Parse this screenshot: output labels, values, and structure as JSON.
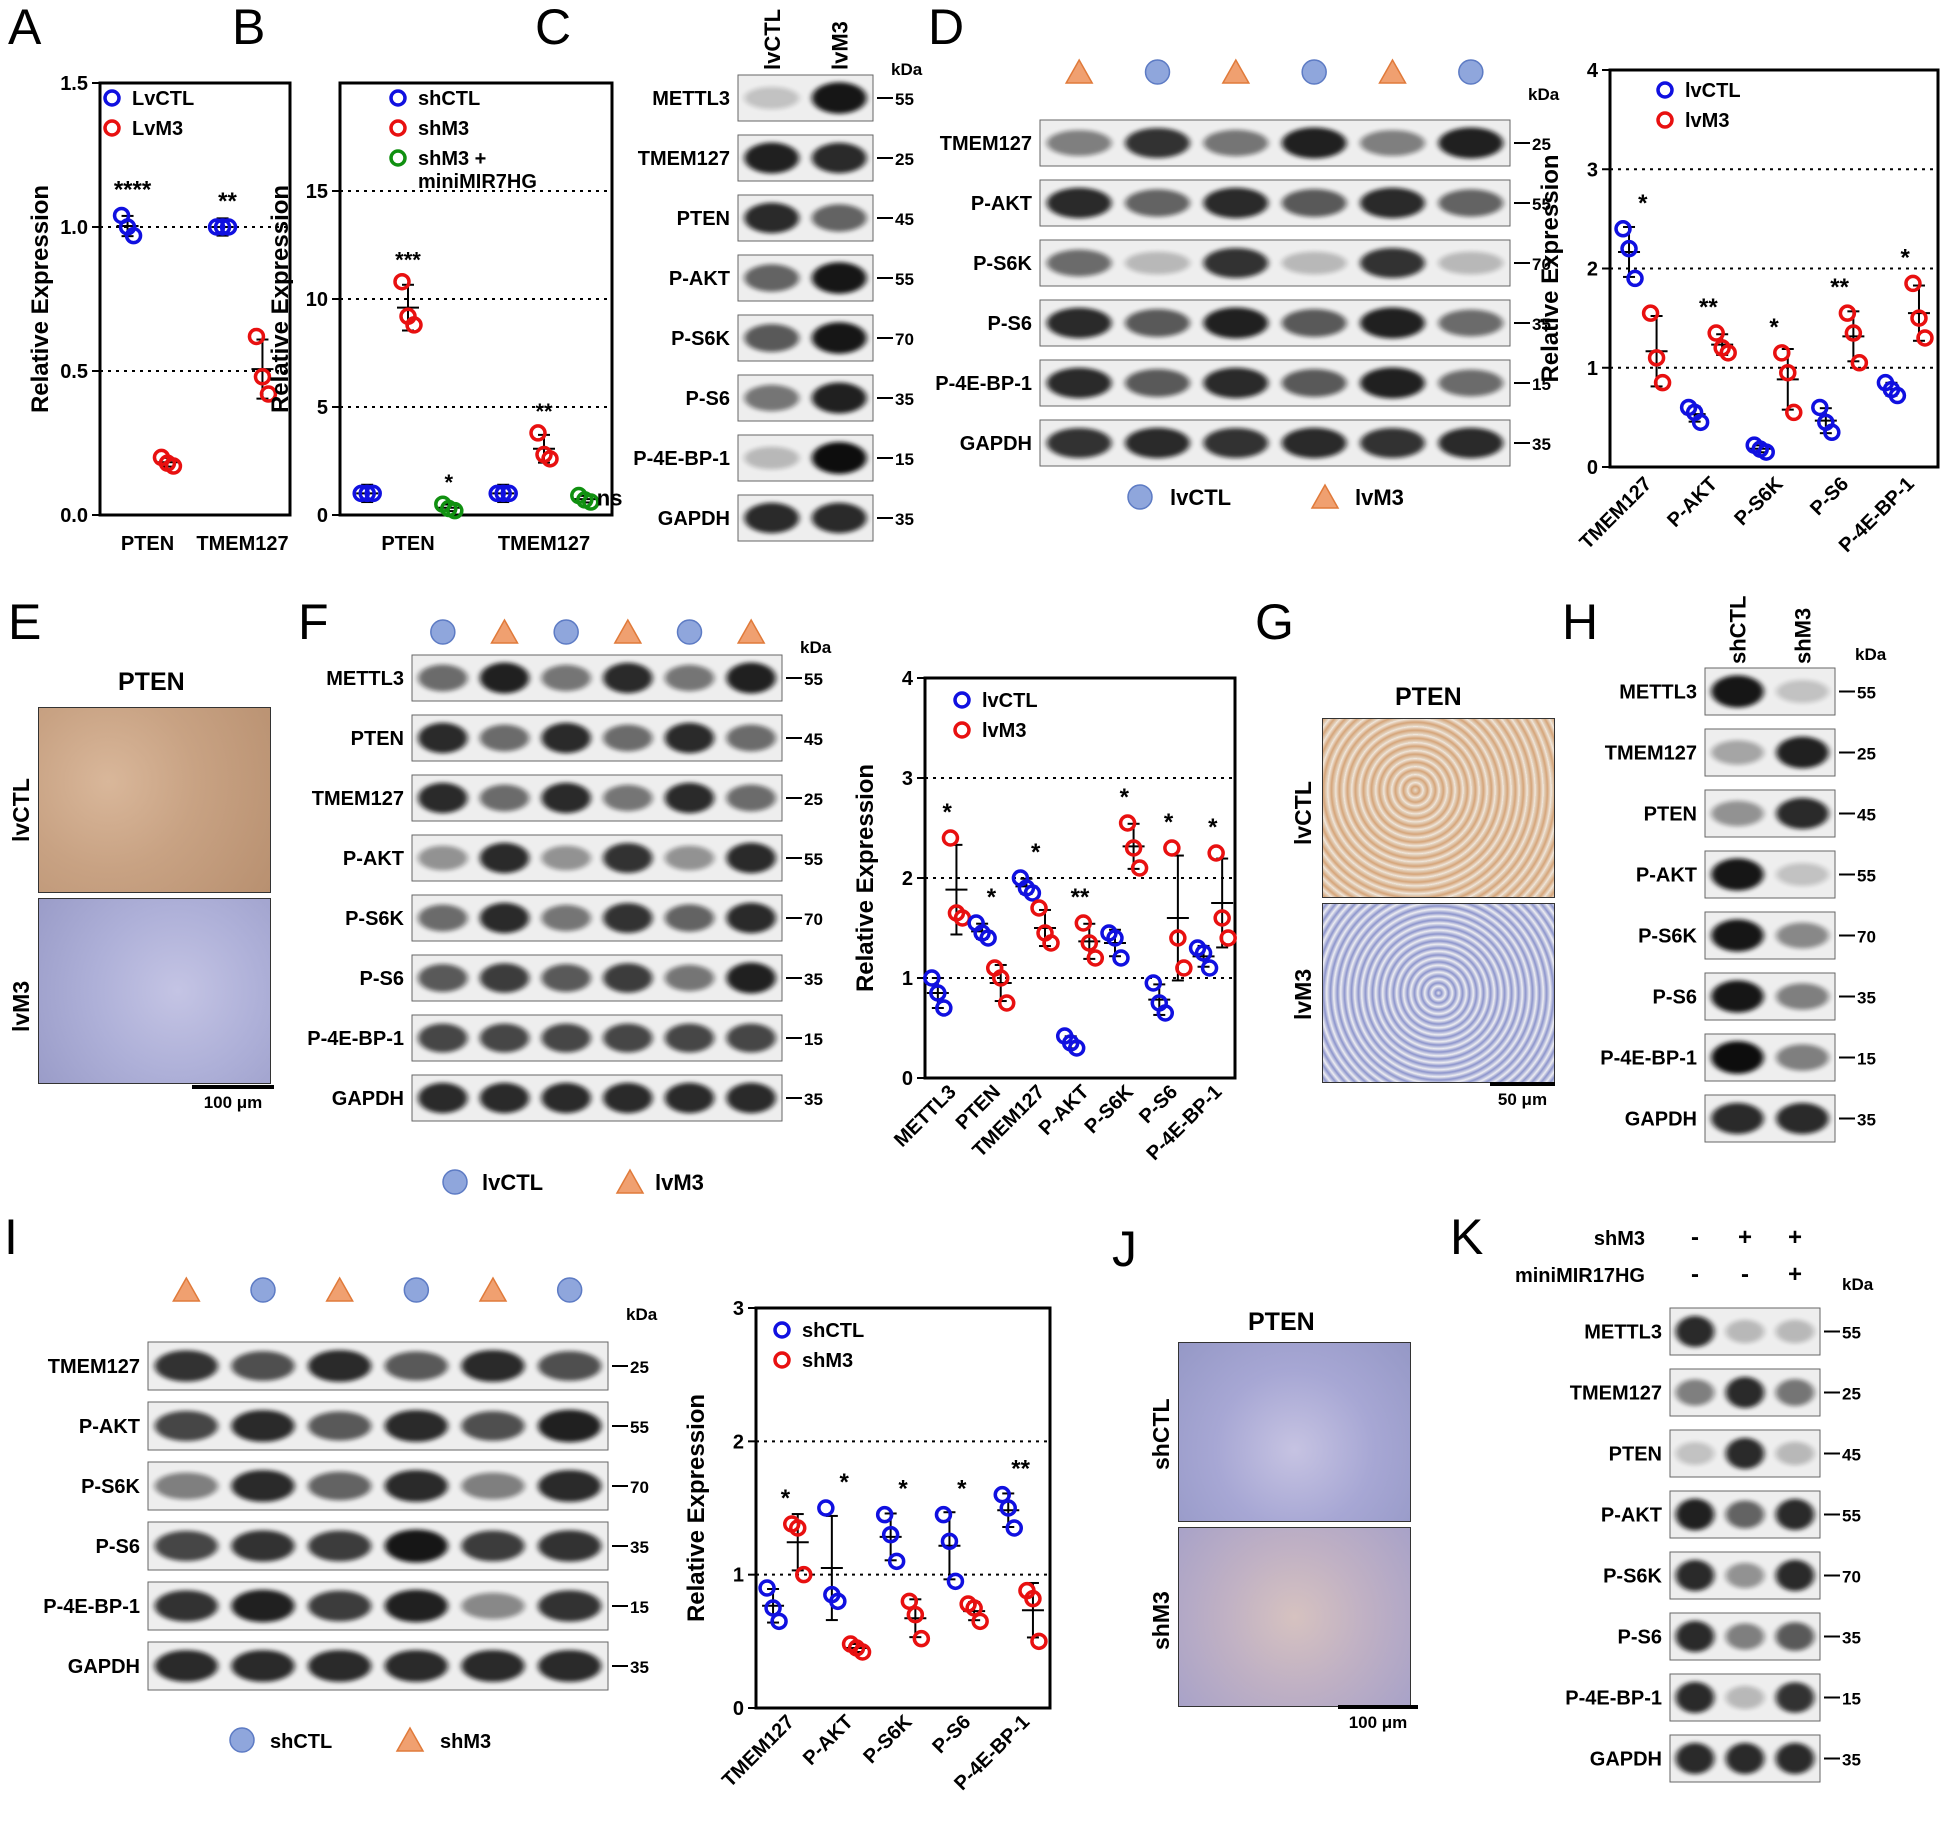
{
  "panel_letters": [
    "A",
    "B",
    "C",
    "D",
    "E",
    "F",
    "G",
    "H",
    "I",
    "J",
    "K"
  ],
  "kda": "kDa",
  "blot_C": {
    "lanes": [
      "lvCTL",
      "lvM3"
    ],
    "rows": [
      {
        "label": "METTL3",
        "mw": "55",
        "i": [
          0.05,
          0.95
        ]
      },
      {
        "label": "TMEM127",
        "mw": "25",
        "i": [
          0.9,
          0.85
        ]
      },
      {
        "label": "PTEN",
        "mw": "45",
        "i": [
          0.85,
          0.55
        ]
      },
      {
        "label": "P-AKT",
        "mw": "55",
        "i": [
          0.55,
          0.95
        ]
      },
      {
        "label": "P-S6K",
        "mw": "70",
        "i": [
          0.6,
          0.95
        ]
      },
      {
        "label": "P-S6",
        "mw": "35",
        "i": [
          0.45,
          0.9
        ]
      },
      {
        "label": "P-4E-BP-1",
        "mw": "15",
        "i": [
          0.1,
          1.0
        ]
      },
      {
        "label": "GAPDH",
        "mw": "35",
        "i": [
          0.85,
          0.85
        ]
      }
    ]
  },
  "blot_D": {
    "lanes": [
      "triangle",
      "circle",
      "triangle",
      "circle",
      "triangle",
      "circle"
    ],
    "rows": [
      {
        "label": "TMEM127",
        "mw": "25",
        "i": [
          0.4,
          0.8,
          0.45,
          0.9,
          0.4,
          0.9
        ]
      },
      {
        "label": "P-AKT",
        "mw": "55",
        "i": [
          0.85,
          0.55,
          0.85,
          0.6,
          0.85,
          0.55
        ]
      },
      {
        "label": "P-S6K",
        "mw": "70",
        "i": [
          0.5,
          0.1,
          0.8,
          0.1,
          0.8,
          0.1
        ]
      },
      {
        "label": "P-S6",
        "mw": "35",
        "i": [
          0.85,
          0.6,
          0.9,
          0.6,
          0.9,
          0.5
        ]
      },
      {
        "label": "P-4E-BP-1",
        "mw": "15",
        "i": [
          0.85,
          0.6,
          0.85,
          0.6,
          0.9,
          0.5
        ]
      },
      {
        "label": "GAPDH",
        "mw": "35",
        "i": [
          0.8,
          0.85,
          0.8,
          0.85,
          0.8,
          0.85
        ]
      }
    ],
    "legend": [
      "lvCTL",
      "lvM3"
    ]
  },
  "blot_F": {
    "lanes": [
      "circle",
      "triangle",
      "circle",
      "triangle",
      "circle",
      "triangle"
    ],
    "rows": [
      {
        "label": "METTL3",
        "mw": "55",
        "i": [
          0.5,
          0.9,
          0.45,
          0.85,
          0.45,
          0.9
        ]
      },
      {
        "label": "PTEN",
        "mw": "45",
        "i": [
          0.85,
          0.5,
          0.85,
          0.5,
          0.85,
          0.5
        ]
      },
      {
        "label": "TMEM127",
        "mw": "25",
        "i": [
          0.85,
          0.5,
          0.85,
          0.45,
          0.85,
          0.5
        ]
      },
      {
        "label": "P-AKT",
        "mw": "55",
        "i": [
          0.3,
          0.85,
          0.3,
          0.8,
          0.3,
          0.85
        ]
      },
      {
        "label": "P-S6K",
        "mw": "70",
        "i": [
          0.5,
          0.85,
          0.45,
          0.8,
          0.55,
          0.85
        ]
      },
      {
        "label": "P-S6",
        "mw": "35",
        "i": [
          0.6,
          0.75,
          0.6,
          0.75,
          0.45,
          0.9
        ]
      },
      {
        "label": "P-4E-BP-1",
        "mw": "15",
        "i": [
          0.7,
          0.7,
          0.7,
          0.7,
          0.7,
          0.7
        ]
      },
      {
        "label": "GAPDH",
        "mw": "35",
        "i": [
          0.85,
          0.85,
          0.85,
          0.85,
          0.85,
          0.85
        ]
      }
    ],
    "legend": [
      "lvCTL",
      "lvM3"
    ]
  },
  "blot_H": {
    "lanes": [
      "shCTL",
      "shM3"
    ],
    "rows": [
      {
        "label": "METTL3",
        "mw": "55",
        "i": [
          0.95,
          0.05
        ]
      },
      {
        "label": "TMEM127",
        "mw": "25",
        "i": [
          0.2,
          0.9
        ]
      },
      {
        "label": "PTEN",
        "mw": "45",
        "i": [
          0.3,
          0.85
        ]
      },
      {
        "label": "P-AKT",
        "mw": "55",
        "i": [
          0.95,
          0.05
        ]
      },
      {
        "label": "P-S6K",
        "mw": "70",
        "i": [
          0.95,
          0.35
        ]
      },
      {
        "label": "P-S6",
        "mw": "35",
        "i": [
          0.95,
          0.4
        ]
      },
      {
        "label": "P-4E-BP-1",
        "mw": "15",
        "i": [
          1.0,
          0.4
        ]
      },
      {
        "label": "GAPDH",
        "mw": "35",
        "i": [
          0.85,
          0.85
        ]
      }
    ]
  },
  "blot_I": {
    "lanes": [
      "triangle",
      "circle",
      "triangle",
      "circle",
      "triangle",
      "circle"
    ],
    "rows": [
      {
        "label": "TMEM127",
        "mw": "25",
        "i": [
          0.8,
          0.65,
          0.85,
          0.6,
          0.85,
          0.65
        ]
      },
      {
        "label": "P-AKT",
        "mw": "55",
        "i": [
          0.7,
          0.85,
          0.6,
          0.85,
          0.65,
          0.9
        ]
      },
      {
        "label": "P-S6K",
        "mw": "70",
        "i": [
          0.4,
          0.85,
          0.55,
          0.85,
          0.4,
          0.85
        ]
      },
      {
        "label": "P-S6",
        "mw": "35",
        "i": [
          0.7,
          0.8,
          0.75,
          0.95,
          0.75,
          0.8
        ]
      },
      {
        "label": "P-4E-BP-1",
        "mw": "15",
        "i": [
          0.8,
          0.9,
          0.75,
          0.9,
          0.35,
          0.8
        ]
      },
      {
        "label": "GAPDH",
        "mw": "35",
        "i": [
          0.85,
          0.85,
          0.85,
          0.85,
          0.85,
          0.85
        ]
      }
    ],
    "legend": [
      "shCTL",
      "shM3"
    ]
  },
  "blot_K": {
    "header": [
      {
        "label": "shM3",
        "signs": [
          "-",
          "+",
          "+"
        ]
      },
      {
        "label": "miniMIR17HG",
        "signs": [
          "-",
          "-",
          "+"
        ]
      }
    ],
    "rows": [
      {
        "label": "METTL3",
        "mw": "55",
        "i": [
          0.85,
          0.1,
          0.1
        ]
      },
      {
        "label": "TMEM127",
        "mw": "25",
        "i": [
          0.4,
          0.85,
          0.45
        ]
      },
      {
        "label": "PTEN",
        "mw": "45",
        "i": [
          0.05,
          0.85,
          0.1
        ]
      },
      {
        "label": "P-AKT",
        "mw": "55",
        "i": [
          0.9,
          0.55,
          0.85
        ]
      },
      {
        "label": "P-S6K",
        "mw": "70",
        "i": [
          0.85,
          0.3,
          0.85
        ]
      },
      {
        "label": "P-S6",
        "mw": "35",
        "i": [
          0.85,
          0.4,
          0.6
        ]
      },
      {
        "label": "P-4E-BP-1",
        "mw": "15",
        "i": [
          0.85,
          0.1,
          0.8
        ]
      },
      {
        "label": "GAPDH",
        "mw": "35",
        "i": [
          0.85,
          0.85,
          0.85
        ]
      }
    ]
  },
  "tissue": {
    "E": {
      "title": "PTEN",
      "rows": [
        "lvCTL",
        "lvM3"
      ],
      "scale": "100 μm"
    },
    "G": {
      "title": "PTEN",
      "rows": [
        "lvCTL",
        "lvM3"
      ],
      "scale": "50 μm"
    },
    "J": {
      "title": "PTEN",
      "rows": [
        "shCTL",
        "shM3"
      ],
      "scale": "100 μm"
    }
  },
  "colors": {
    "blue": "#1010e0",
    "red": "#e81010",
    "green": "#109010",
    "circle_fill": "#8fa6dc",
    "triangle_fill": "#f0a070",
    "ihc_brown": "#c8a283",
    "ihc_blue": "#aeb0d8"
  },
  "chart_data": [
    {
      "panel": "A",
      "type": "scatter",
      "ylabel": "Relative Expression",
      "ylim": [
        0,
        1.5
      ],
      "yticks": [
        "0.0",
        "0.5",
        "1.0",
        "1.5"
      ],
      "categories": [
        "PTEN",
        "TMEM127"
      ],
      "reflines": [
        0.5,
        1.0
      ],
      "series": [
        {
          "name": "LvCTL",
          "color": "blue",
          "values": [
            [
              1.04,
              1.0,
              0.97
            ],
            [
              1.0,
              1.0,
              1.0
            ]
          ]
        },
        {
          "name": "LvM3",
          "color": "red",
          "values": [
            [
              0.2,
              0.18,
              0.17
            ],
            [
              0.62,
              0.48,
              0.42
            ]
          ]
        }
      ],
      "sig": [
        "****",
        "**"
      ]
    },
    {
      "panel": "B",
      "type": "scatter",
      "ylabel": "Relative Expression",
      "ylim": [
        0,
        20
      ],
      "yticks": [
        "0",
        "5",
        "10",
        "15"
      ],
      "categories": [
        "PTEN",
        "TMEM127"
      ],
      "reflines": [
        5,
        10,
        15
      ],
      "series": [
        {
          "name": "shCTL",
          "color": "blue",
          "values": [
            [
              1,
              1,
              1
            ],
            [
              1,
              1,
              1
            ]
          ]
        },
        {
          "name": "shM3",
          "color": "red",
          "values": [
            [
              10.8,
              9.2,
              8.8
            ],
            [
              3.8,
              2.8,
              2.6
            ]
          ]
        },
        {
          "name": "shM3 + miniMIR7HG",
          "color": "green",
          "values": [
            [
              0.5,
              0.3,
              0.2
            ],
            [
              0.9,
              0.7,
              0.6
            ]
          ]
        }
      ],
      "sig": [
        {
          "text": "***",
          "at": "red"
        },
        {
          "text": "*",
          "at": "green"
        },
        {
          "text": "**",
          "at": "red"
        },
        {
          "text": "ns",
          "at": "green"
        }
      ]
    },
    {
      "panel": "D",
      "type": "scatter",
      "ylabel": "Relative Expression",
      "ylim": [
        0,
        4
      ],
      "yticks": [
        "0",
        "1",
        "2",
        "3",
        "4"
      ],
      "categories": [
        "TMEM127",
        "P-AKT",
        "P-S6K",
        "P-S6",
        "P-4E-BP-1"
      ],
      "reflines": [
        1,
        2,
        3
      ],
      "series": [
        {
          "name": "lvCTL",
          "color": "blue",
          "values": [
            [
              2.4,
              2.2,
              1.9
            ],
            [
              0.6,
              0.55,
              0.45
            ],
            [
              0.22,
              0.18,
              0.15
            ],
            [
              0.6,
              0.45,
              0.35
            ],
            [
              0.85,
              0.78,
              0.72
            ]
          ]
        },
        {
          "name": "lvM3",
          "color": "red",
          "values": [
            [
              1.55,
              1.1,
              0.85
            ],
            [
              1.35,
              1.2,
              1.15
            ],
            [
              1.15,
              0.95,
              0.55
            ],
            [
              1.55,
              1.35,
              1.05
            ],
            [
              1.85,
              1.5,
              1.3
            ]
          ]
        }
      ],
      "sig": [
        "*",
        "**",
        "*",
        "**",
        "*"
      ]
    },
    {
      "panel": "F",
      "type": "scatter",
      "ylabel": "Relative Expression",
      "ylim": [
        0,
        4
      ],
      "yticks": [
        "0",
        "1",
        "2",
        "3",
        "4"
      ],
      "categories": [
        "METTL3",
        "PTEN",
        "TMEM127",
        "P-AKT",
        "P-S6K",
        "P-S6",
        "P-4E-BP-1"
      ],
      "reflines": [
        1,
        2,
        3
      ],
      "series": [
        {
          "name": "lvCTL",
          "color": "blue",
          "values": [
            [
              1.0,
              0.85,
              0.7
            ],
            [
              1.55,
              1.45,
              1.4
            ],
            [
              2.0,
              1.9,
              1.85
            ],
            [
              0.42,
              0.35,
              0.3
            ],
            [
              1.45,
              1.4,
              1.2
            ],
            [
              0.95,
              0.75,
              0.65
            ],
            [
              1.3,
              1.25,
              1.1
            ]
          ]
        },
        {
          "name": "lvM3",
          "color": "red",
          "values": [
            [
              2.4,
              1.65,
              1.6
            ],
            [
              1.1,
              1.0,
              0.75
            ],
            [
              1.7,
              1.45,
              1.35
            ],
            [
              1.55,
              1.35,
              1.2
            ],
            [
              2.55,
              2.3,
              2.1
            ],
            [
              2.3,
              1.4,
              1.1
            ],
            [
              2.25,
              1.6,
              1.4
            ]
          ]
        }
      ],
      "sig": [
        "*",
        "*",
        "*",
        "**",
        "*",
        "*",
        "*"
      ]
    },
    {
      "panel": "I",
      "type": "scatter",
      "ylabel": "Relative Expression",
      "ylim": [
        0,
        3
      ],
      "yticks": [
        "0",
        "1",
        "2",
        "3"
      ],
      "categories": [
        "TMEM127",
        "P-AKT",
        "P-S6K",
        "P-S6",
        "P-4E-BP-1"
      ],
      "reflines": [
        1,
        2
      ],
      "series": [
        {
          "name": "shCTL",
          "color": "blue",
          "values": [
            [
              0.9,
              0.75,
              0.65
            ],
            [
              1.5,
              0.85,
              0.8
            ],
            [
              1.45,
              1.3,
              1.1
            ],
            [
              1.45,
              1.25,
              0.95
            ],
            [
              1.6,
              1.5,
              1.35
            ]
          ]
        },
        {
          "name": "shM3",
          "color": "red",
          "values": [
            [
              1.38,
              1.35,
              1.0
            ],
            [
              0.48,
              0.45,
              0.42
            ],
            [
              0.8,
              0.7,
              0.52
            ],
            [
              0.78,
              0.75,
              0.65
            ],
            [
              0.88,
              0.82,
              0.5
            ]
          ]
        }
      ],
      "sig": [
        "*",
        "*",
        "*",
        "*",
        "**"
      ]
    }
  ]
}
